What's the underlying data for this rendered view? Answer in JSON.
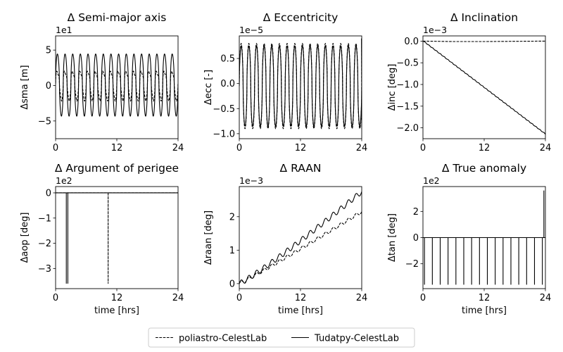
{
  "legend": {
    "placement": "bottom-center",
    "entries": [
      {
        "label": "poliastro-CelestLab",
        "style": "dashed"
      },
      {
        "label": "Tudatpy-CelestLab",
        "style": "solid"
      }
    ]
  },
  "chart_data": [
    {
      "type": "line",
      "title": "Δ Semi-major axis",
      "ylabel": "Δsma [m]",
      "xlabel": "",
      "offset_text": "1e1",
      "xlim": [
        0,
        24
      ],
      "ylim": [
        -7.5,
        7.0
      ],
      "xticks": [
        0,
        12,
        24
      ],
      "xtick_labels": [
        "0",
        "12",
        "24"
      ],
      "yticks": [
        5,
        0,
        -5
      ],
      "ytick_labels": [
        "5",
        "0",
        "−5"
      ],
      "series": [
        {
          "name": "poliastro-CelestLab",
          "style": "dashed",
          "pattern": {
            "kind": "oscillation",
            "periods": 16,
            "mean": 0.0,
            "amp_min": -3.0,
            "amp_max": 2.6,
            "inner": [
              -0.5,
              2.0
            ]
          }
        },
        {
          "name": "Tudatpy-CelestLab",
          "style": "solid",
          "pattern": {
            "kind": "oscillation",
            "periods": 16,
            "mean": 0.0,
            "amp_min": -7.0,
            "amp_max": 5.5,
            "inner": [
              1.8,
              2.7
            ]
          }
        }
      ]
    },
    {
      "type": "line",
      "title": "Δ Eccentricity",
      "ylabel": "Δecc [-]",
      "xlabel": "",
      "offset_text": "1e−5",
      "xlim": [
        0,
        24
      ],
      "ylim": [
        -1.1,
        0.95
      ],
      "xticks": [
        0,
        12,
        24
      ],
      "xtick_labels": [
        "0",
        "12",
        "24"
      ],
      "yticks": [
        0.5,
        0.0,
        -0.5,
        -1.0
      ],
      "ytick_labels": [
        "0.5",
        "0.0",
        "−0.5",
        "−1.0"
      ],
      "series": [
        {
          "name": "poliastro-CelestLab",
          "style": "dashed",
          "pattern": {
            "kind": "oscillation",
            "periods": 16,
            "mean": 0.0,
            "amp_min": -0.9,
            "amp_max": 0.8,
            "end_spike": 0.9
          }
        },
        {
          "name": "Tudatpy-CelestLab",
          "style": "solid",
          "pattern": {
            "kind": "oscillation",
            "periods": 16,
            "mean": 0.0,
            "amp_min": -0.85,
            "amp_max": 0.75
          }
        }
      ]
    },
    {
      "type": "line",
      "title": "Δ Inclination",
      "ylabel": "Δinc [deg]",
      "xlabel": "",
      "offset_text": "1e−3",
      "xlim": [
        0,
        24
      ],
      "ylim": [
        -2.25,
        0.12
      ],
      "xticks": [
        0,
        12,
        24
      ],
      "xtick_labels": [
        "0",
        "12",
        "24"
      ],
      "yticks": [
        0.0,
        -0.5,
        -1.0,
        -1.5,
        -2.0
      ],
      "ytick_labels": [
        "0.0",
        "−0.5",
        "−1.0",
        "−1.5",
        "−2.0"
      ],
      "series": [
        {
          "name": "poliastro-CelestLab",
          "style": "dashed",
          "x": [
            0,
            6,
            12,
            18,
            24
          ],
          "y": [
            0.0,
            -0.01,
            -0.01,
            -0.005,
            0.0
          ]
        },
        {
          "name": "Tudatpy-CelestLab",
          "style": "solid",
          "pattern": {
            "kind": "stairs",
            "start": 0.0,
            "end": -2.15,
            "steps": 32
          }
        }
      ]
    },
    {
      "type": "line",
      "title": "Δ Argument of perigee",
      "ylabel": "Δaop [deg]",
      "xlabel": "time [hrs]",
      "offset_text": "1e2",
      "xlim": [
        0,
        24
      ],
      "ylim": [
        -3.8,
        0.25
      ],
      "xticks": [
        0,
        12,
        24
      ],
      "xtick_labels": [
        "0",
        "12",
        "24"
      ],
      "yticks": [
        0,
        -1,
        -2,
        -3
      ],
      "ytick_labels": [
        "0",
        "−1",
        "−2",
        "−3"
      ],
      "series": [
        {
          "name": "poliastro-CelestLab",
          "style": "dashed",
          "x": [
            0,
            10.3,
            10.3,
            10.3,
            24
          ],
          "y": [
            0,
            0,
            -3.6,
            0,
            0
          ]
        },
        {
          "name": "Tudatpy-CelestLab",
          "style": "solid",
          "x": [
            0,
            2.1,
            2.1,
            2.1,
            2.4,
            2.4,
            2.4,
            24
          ],
          "y": [
            0,
            0,
            -3.6,
            0,
            0,
            -3.6,
            0,
            0
          ]
        }
      ]
    },
    {
      "type": "line",
      "title": "Δ RAAN",
      "ylabel": "Δraan [deg]",
      "xlabel": "time [hrs]",
      "offset_text": "1e−3",
      "xlim": [
        0,
        24
      ],
      "ylim": [
        -0.15,
        2.9
      ],
      "xticks": [
        0,
        12,
        24
      ],
      "xtick_labels": [
        "0",
        "12",
        "24"
      ],
      "yticks": [
        0,
        1,
        2
      ],
      "ytick_labels": [
        "0",
        "1",
        "2"
      ],
      "series": [
        {
          "name": "poliastro-CelestLab",
          "style": "dashed",
          "pattern": {
            "kind": "ramp",
            "start": 0.0,
            "end": 2.15,
            "wiggle": 0.05,
            "periods": 16,
            "power": 1.05
          }
        },
        {
          "name": "Tudatpy-CelestLab",
          "style": "solid",
          "pattern": {
            "kind": "ramp",
            "start": 0.0,
            "end": 2.75,
            "wiggle": 0.08,
            "periods": 16,
            "power": 1.1
          }
        }
      ]
    },
    {
      "type": "line",
      "title": "Δ True anomaly",
      "ylabel": "Δtan [deg]",
      "xlabel": "time [hrs]",
      "offset_text": "1e2",
      "xlim": [
        0,
        24
      ],
      "ylim": [
        -3.9,
        3.9
      ],
      "xticks": [
        0,
        12,
        24
      ],
      "xtick_labels": [
        "0",
        "12",
        "24"
      ],
      "yticks": [
        2,
        0,
        -2
      ],
      "ytick_labels": [
        "2",
        "0",
        "−2"
      ],
      "series": [
        {
          "name": "poliastro-CelestLab",
          "style": "dashed",
          "x": [
            0,
            23.7,
            23.7,
            23.7,
            24
          ],
          "y": [
            0,
            0,
            3.6,
            0,
            0
          ]
        },
        {
          "name": "Tudatpy-CelestLab",
          "style": "solid",
          "pattern": {
            "kind": "spikes",
            "count": 16,
            "first": 0.3,
            "last": 23.4,
            "value": -3.6
          }
        }
      ]
    }
  ]
}
